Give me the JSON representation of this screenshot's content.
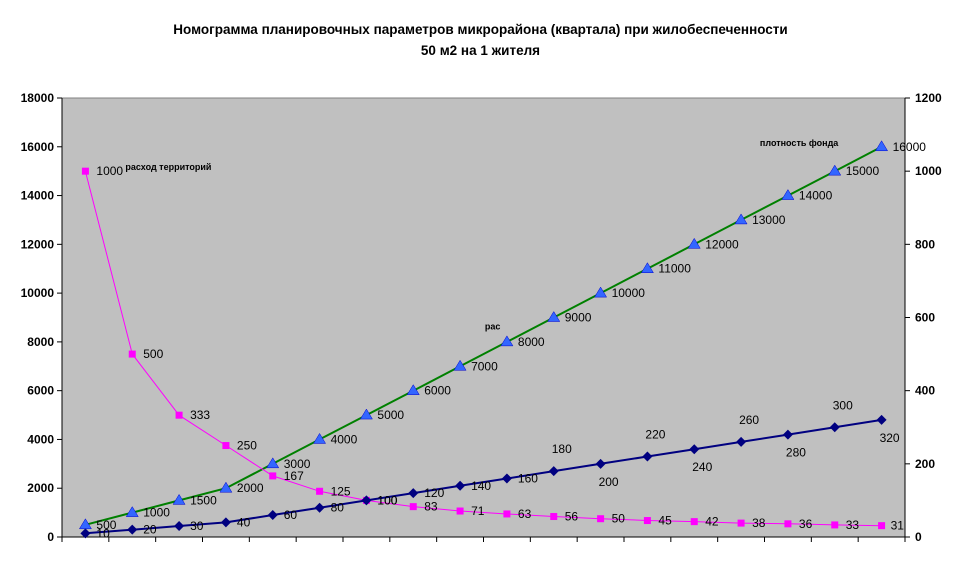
{
  "chart_data": {
    "type": "line",
    "title_line1": "Номограмма  планировочных параметров микрорайона (квартала) при жилобеспеченности",
    "title_line2": "50 м2 на 1 жителя",
    "left_axis": {
      "ylim": [
        0,
        18000
      ],
      "ticks": [
        "0",
        "2000",
        "4000",
        "6000",
        "8000",
        "10000",
        "12000",
        "14000",
        "16000",
        "18000"
      ]
    },
    "right_axis": {
      "ylim": [
        0,
        1200
      ],
      "ticks": [
        "0",
        "200",
        "400",
        "600",
        "800",
        "1000",
        "1200"
      ]
    },
    "n_categories": 18,
    "grid": false,
    "background": "#c0c0c0",
    "series": [
      {
        "id": "fund",
        "axis": "left",
        "color": "#008000",
        "marker": "triangle",
        "marker_color": "#3366ff",
        "values": [
          500,
          1000,
          1500,
          2000,
          3000,
          4000,
          5000,
          6000,
          7000,
          8000,
          9000,
          10000,
          11000,
          12000,
          13000,
          14000,
          15000,
          16000
        ],
        "labels": [
          "500",
          "1000",
          "1500",
          "2000",
          "3000",
          "4000",
          "5000",
          "6000",
          "7000",
          "8000",
          "9000",
          "10000",
          "11000",
          "12000",
          "13000",
          "14000",
          "15000",
          "16000"
        ]
      },
      {
        "id": "territory",
        "axis": "right",
        "color": "#ff00ff",
        "marker": "square",
        "marker_color": "#ff00ff",
        "values": [
          1000,
          500,
          333,
          250,
          167,
          125,
          100,
          83,
          71,
          63,
          56,
          50,
          45,
          42,
          38,
          36,
          33,
          31
        ],
        "labels": [
          "1000",
          "500",
          "333",
          "250",
          "167",
          "125",
          "100",
          "83",
          "71",
          "63",
          "56",
          "50",
          "45",
          "42",
          "38",
          "36",
          "33",
          "31"
        ]
      },
      {
        "id": "density",
        "axis": "right",
        "color": "#000080",
        "marker": "diamond",
        "marker_color": "#000080",
        "values": [
          10,
          20,
          30,
          40,
          60,
          80,
          100,
          120,
          140,
          160,
          180,
          200,
          220,
          240,
          260,
          280,
          300,
          320
        ],
        "labels": [
          "10",
          "20",
          "30",
          "40",
          "60",
          "80",
          "100",
          "120",
          "140",
          "160",
          "180",
          "200",
          "220",
          "240",
          "260",
          "280",
          "300",
          "320"
        ]
      }
    ],
    "annotations": [
      {
        "text": "расход территорий"
      },
      {
        "text": "плотность фонда"
      },
      {
        "text": "рас"
      }
    ]
  }
}
